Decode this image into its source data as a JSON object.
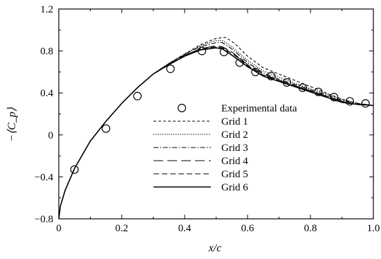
{
  "chart_data": {
    "type": "line",
    "xlabel": "x/c",
    "ylabel": "−⟨C_p⟩",
    "xlim": [
      0,
      1.0
    ],
    "ylim": [
      -0.8,
      1.2
    ],
    "x_ticks": [
      0,
      0.2,
      0.4,
      0.6,
      0.8,
      1.0
    ],
    "x_tick_labels": [
      "0",
      "0.2",
      "0.4",
      "0.6",
      "0.8",
      "1.0"
    ],
    "y_ticks": [
      -0.8,
      -0.4,
      0,
      0.4,
      0.8,
      1.2
    ],
    "y_tick_labels": [
      "−0.8",
      "−0.4",
      "0",
      "0.4",
      "0.8",
      "1.2"
    ],
    "grid": false,
    "legend_position": "center-right",
    "series": [
      {
        "name": "Experimental data",
        "style": "circle-marker",
        "x": [
          0.05,
          0.15,
          0.25,
          0.355,
          0.455,
          0.525,
          0.575,
          0.625,
          0.675,
          0.725,
          0.775,
          0.825,
          0.875,
          0.925,
          0.975
        ],
        "y": [
          -0.33,
          0.06,
          0.37,
          0.63,
          0.8,
          0.79,
          0.69,
          0.6,
          0.56,
          0.5,
          0.45,
          0.41,
          0.36,
          0.32,
          0.3
        ]
      },
      {
        "name": "Grid 1",
        "style": "short-dash",
        "x": [
          0,
          0.005,
          0.02,
          0.05,
          0.1,
          0.15,
          0.2,
          0.25,
          0.3,
          0.35,
          0.4,
          0.45,
          0.5,
          0.53,
          0.56,
          0.6,
          0.65,
          0.7,
          0.75,
          0.8,
          0.85,
          0.9,
          0.95,
          1.0
        ],
        "y": [
          -0.8,
          -0.68,
          -0.53,
          -0.32,
          -0.06,
          0.13,
          0.3,
          0.45,
          0.58,
          0.68,
          0.77,
          0.86,
          0.92,
          0.93,
          0.87,
          0.75,
          0.64,
          0.58,
          0.52,
          0.46,
          0.4,
          0.34,
          0.3,
          0.28
        ]
      },
      {
        "name": "Grid 2",
        "style": "dotted",
        "x": [
          0,
          0.005,
          0.02,
          0.05,
          0.1,
          0.15,
          0.2,
          0.25,
          0.3,
          0.35,
          0.4,
          0.45,
          0.5,
          0.52,
          0.55,
          0.6,
          0.65,
          0.7,
          0.75,
          0.8,
          0.85,
          0.9,
          0.95,
          1.0
        ],
        "y": [
          -0.8,
          -0.68,
          -0.53,
          -0.32,
          -0.06,
          0.13,
          0.3,
          0.45,
          0.58,
          0.68,
          0.77,
          0.85,
          0.9,
          0.9,
          0.84,
          0.71,
          0.61,
          0.55,
          0.49,
          0.44,
          0.39,
          0.34,
          0.3,
          0.28
        ]
      },
      {
        "name": "Grid 3",
        "style": "dash-dot",
        "x": [
          0,
          0.005,
          0.02,
          0.05,
          0.1,
          0.15,
          0.2,
          0.25,
          0.3,
          0.35,
          0.4,
          0.45,
          0.5,
          0.52,
          0.55,
          0.6,
          0.65,
          0.7,
          0.75,
          0.8,
          0.85,
          0.9,
          0.95,
          1.0
        ],
        "y": [
          -0.8,
          -0.68,
          -0.53,
          -0.32,
          -0.06,
          0.13,
          0.3,
          0.45,
          0.58,
          0.68,
          0.77,
          0.84,
          0.88,
          0.88,
          0.82,
          0.69,
          0.59,
          0.53,
          0.48,
          0.43,
          0.38,
          0.33,
          0.3,
          0.28
        ]
      },
      {
        "name": "Grid 4",
        "style": "long-dash",
        "x": [
          0,
          0.005,
          0.02,
          0.05,
          0.1,
          0.15,
          0.2,
          0.25,
          0.3,
          0.35,
          0.4,
          0.45,
          0.5,
          0.52,
          0.55,
          0.6,
          0.65,
          0.7,
          0.75,
          0.8,
          0.85,
          0.9,
          0.95,
          1.0
        ],
        "y": [
          -0.8,
          -0.68,
          -0.53,
          -0.32,
          -0.06,
          0.13,
          0.3,
          0.45,
          0.58,
          0.68,
          0.76,
          0.82,
          0.85,
          0.84,
          0.79,
          0.67,
          0.58,
          0.52,
          0.47,
          0.42,
          0.37,
          0.32,
          0.29,
          0.28
        ]
      },
      {
        "name": "Grid 5",
        "style": "medium-dash",
        "x": [
          0,
          0.005,
          0.02,
          0.05,
          0.1,
          0.15,
          0.2,
          0.25,
          0.3,
          0.35,
          0.4,
          0.45,
          0.5,
          0.52,
          0.55,
          0.6,
          0.65,
          0.7,
          0.75,
          0.8,
          0.85,
          0.9,
          0.95,
          1.0
        ],
        "y": [
          -0.8,
          -0.68,
          -0.53,
          -0.32,
          -0.06,
          0.13,
          0.3,
          0.45,
          0.58,
          0.68,
          0.76,
          0.82,
          0.84,
          0.83,
          0.78,
          0.66,
          0.57,
          0.52,
          0.47,
          0.42,
          0.37,
          0.32,
          0.29,
          0.28
        ]
      },
      {
        "name": "Grid 6",
        "style": "solid",
        "x": [
          0,
          0.005,
          0.02,
          0.05,
          0.1,
          0.15,
          0.2,
          0.25,
          0.3,
          0.35,
          0.4,
          0.45,
          0.5,
          0.52,
          0.55,
          0.6,
          0.65,
          0.7,
          0.75,
          0.8,
          0.85,
          0.9,
          0.95,
          1.0
        ],
        "y": [
          -0.8,
          -0.68,
          -0.53,
          -0.32,
          -0.06,
          0.13,
          0.3,
          0.45,
          0.58,
          0.67,
          0.75,
          0.81,
          0.83,
          0.82,
          0.76,
          0.65,
          0.56,
          0.51,
          0.46,
          0.41,
          0.36,
          0.31,
          0.29,
          0.28
        ]
      }
    ]
  }
}
